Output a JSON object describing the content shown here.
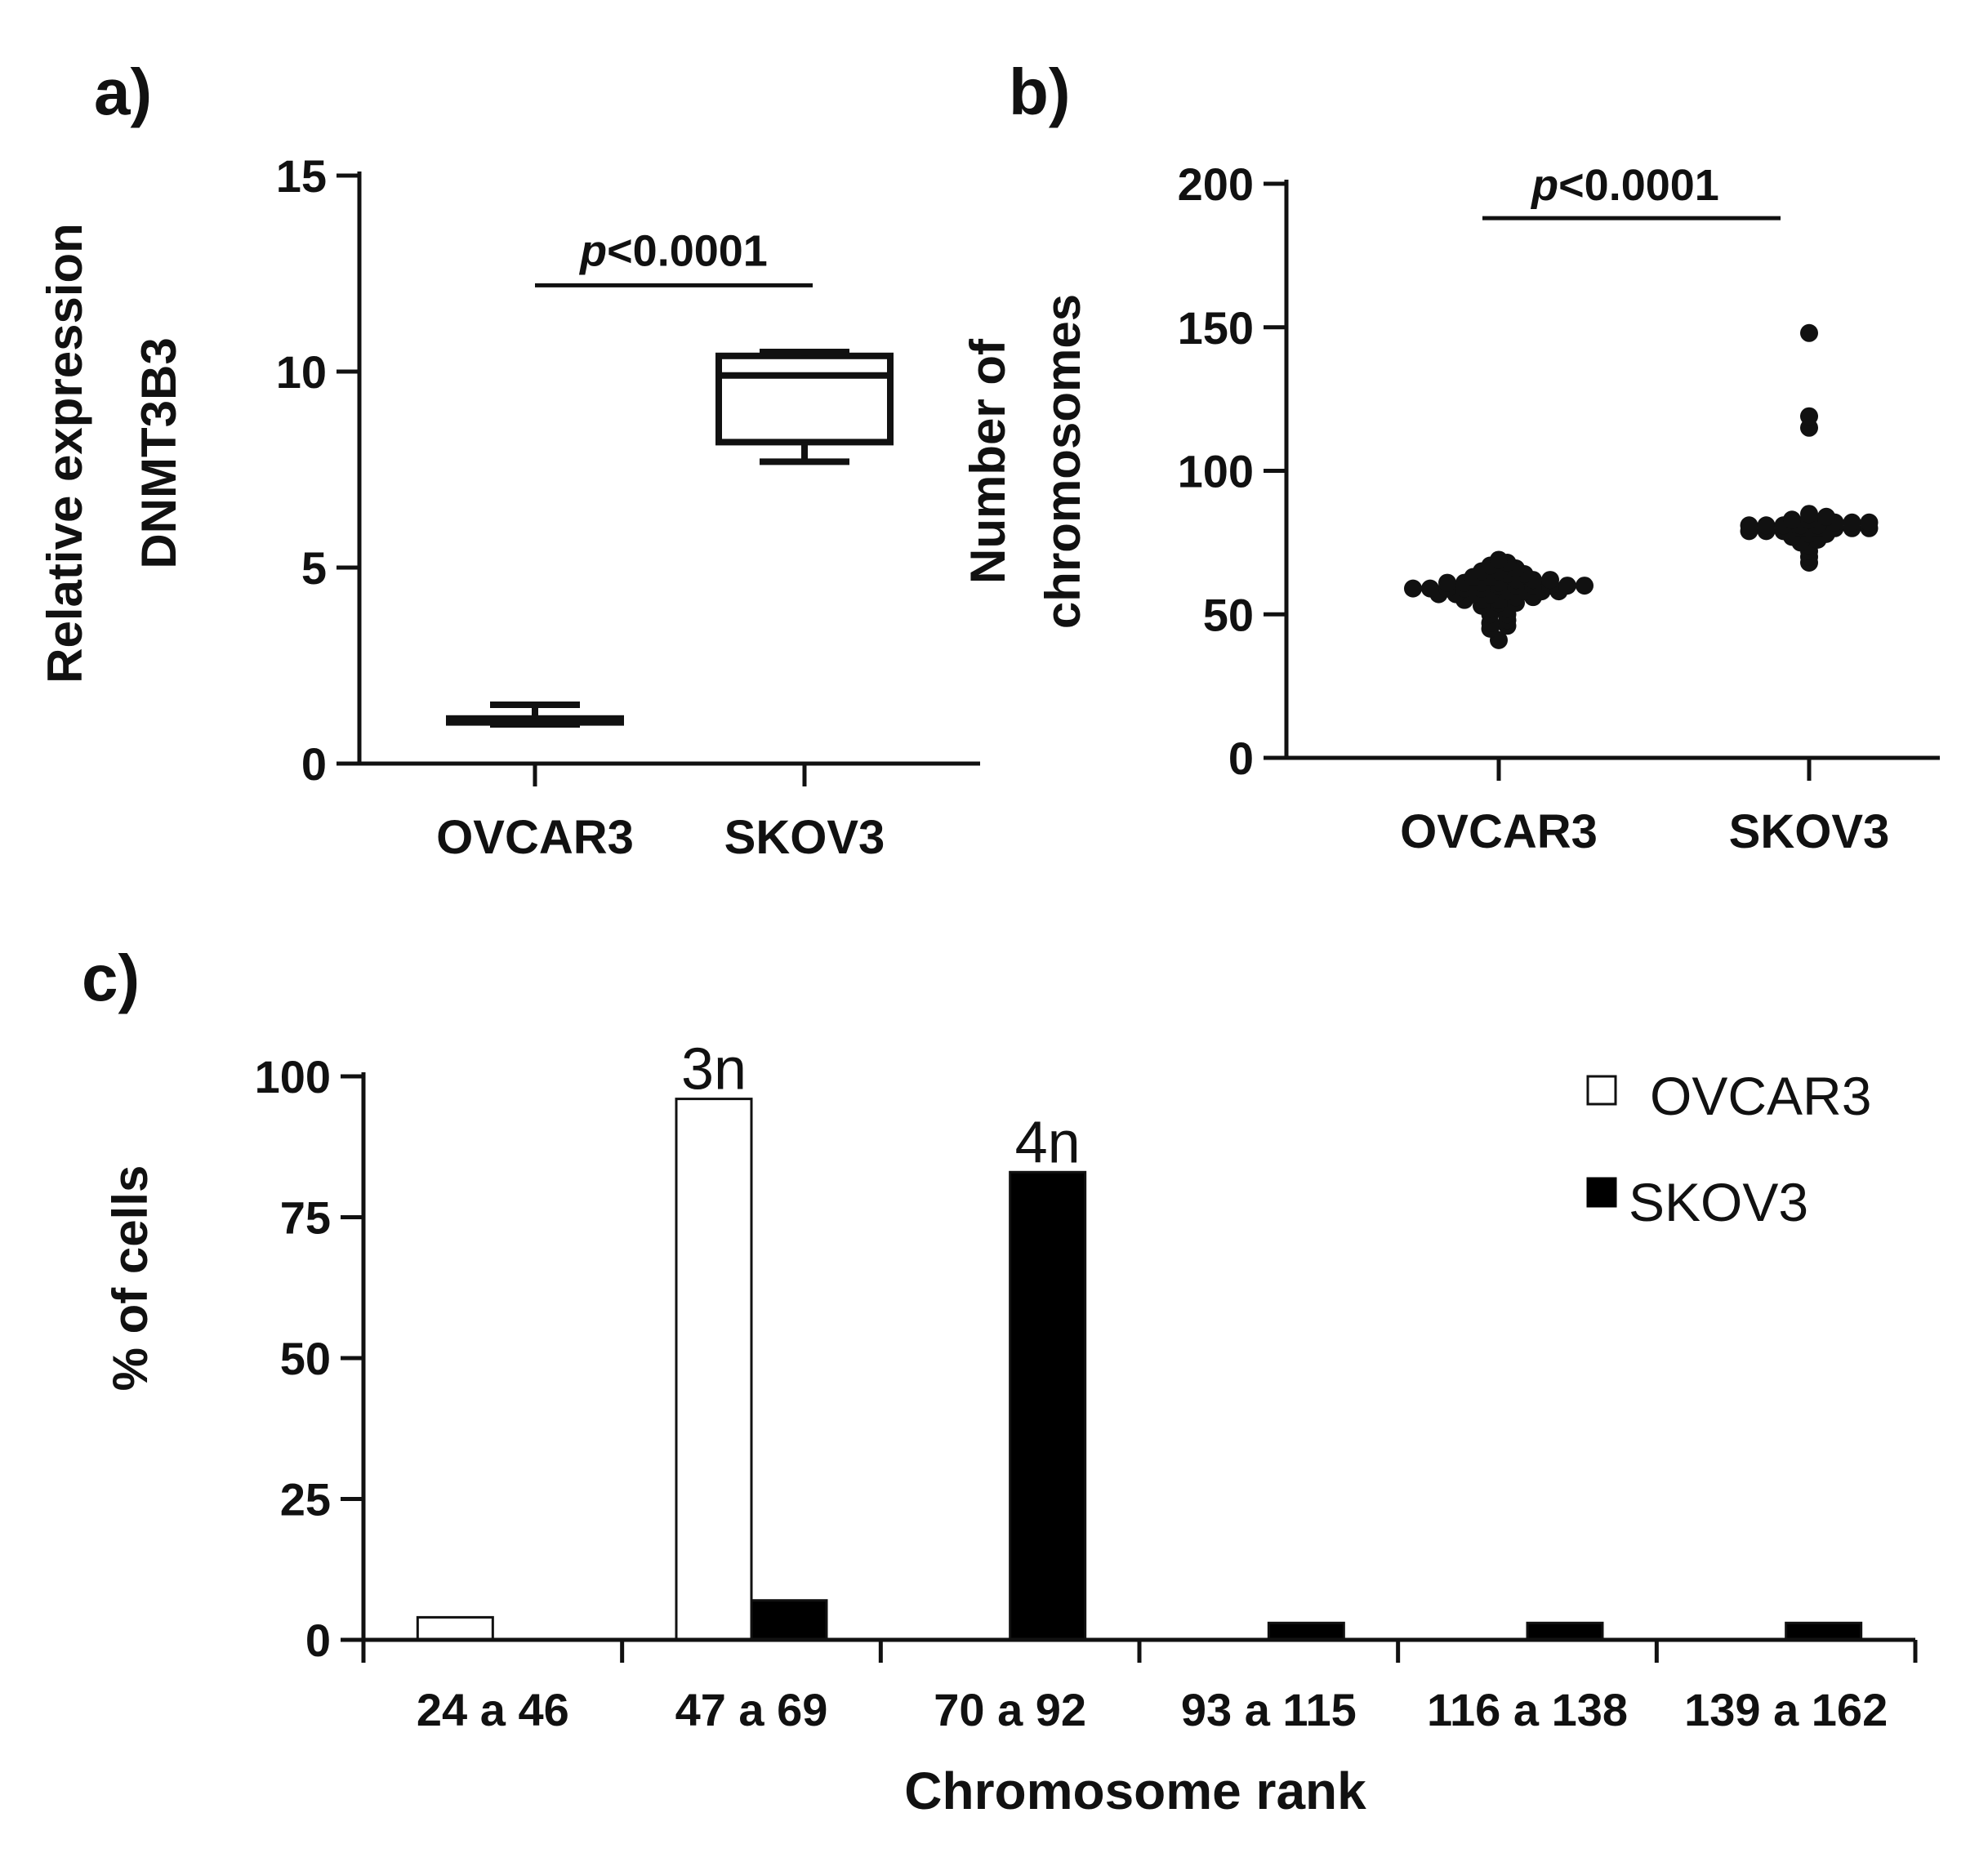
{
  "chart_data": [
    {
      "panel": "a)",
      "type": "box",
      "ylabel_line1": "Relative expression",
      "ylabel_line2": "DNMT3B3",
      "ylim": [
        0,
        15
      ],
      "yticks": [
        "0",
        "5",
        "10",
        "15"
      ],
      "categories": [
        "OVCAR3",
        "SKOV3"
      ],
      "boxes": [
        {
          "name": "OVCAR3",
          "min": 1.0,
          "q1": 1.05,
          "median": 1.1,
          "q3": 1.15,
          "max": 1.5
        },
        {
          "name": "SKOV3",
          "min": 7.7,
          "q1": 8.2,
          "median": 9.9,
          "q3": 10.4,
          "max": 10.5
        }
      ],
      "annotation": {
        "italic": "p",
        "text": "<0.0001",
        "y": 12.2
      }
    },
    {
      "panel": "b)",
      "type": "scatter",
      "ylabel_line1": "Number of",
      "ylabel_line2": "chromosomes",
      "ylim": [
        0,
        200
      ],
      "yticks": [
        "0",
        "50",
        "100",
        "150",
        "200"
      ],
      "categories": [
        "OVCAR3",
        "SKOV3"
      ],
      "series": [
        {
          "name": "OVCAR3",
          "values": [
            41,
            45,
            46,
            47,
            48,
            50,
            50,
            52,
            52,
            53,
            54,
            54,
            55,
            55,
            55,
            56,
            56,
            57,
            57,
            57,
            57,
            58,
            58,
            58,
            58,
            59,
            59,
            59,
            59,
            59,
            60,
            60,
            60,
            60,
            60,
            60,
            61,
            61,
            61,
            61,
            62,
            62,
            62,
            63,
            63,
            64,
            64,
            65,
            65,
            66,
            67,
            68,
            69
          ]
        },
        {
          "name": "SKOV3",
          "values": [
            68,
            70,
            72,
            74,
            75,
            76,
            77,
            78,
            78,
            79,
            79,
            79,
            80,
            80,
            80,
            80,
            80,
            81,
            81,
            81,
            81,
            81,
            82,
            82,
            82,
            83,
            83,
            84,
            85,
            115,
            119,
            148
          ]
        }
      ],
      "annotation": {
        "italic": "p",
        "text": "<0.0001",
        "y": 188
      }
    },
    {
      "panel": "c)",
      "type": "bar",
      "xlabel": "Chromosome rank",
      "ylabel": "% of cells",
      "ylim": [
        0,
        100
      ],
      "yticks": [
        "0",
        "25",
        "50",
        "75",
        "100"
      ],
      "categories": [
        "24 a 46",
        "47 a 69",
        "70 a 92",
        "93 a 115",
        "116 a 138",
        "139 a 162"
      ],
      "series": [
        {
          "name": "OVCAR3",
          "color": "#ffffff",
          "values": [
            4,
            96,
            0,
            0,
            0,
            0
          ]
        },
        {
          "name": "SKOV3",
          "color": "#000000",
          "values": [
            0,
            7,
            83,
            3,
            3,
            3
          ]
        }
      ],
      "bar_labels": [
        {
          "text": "3n",
          "category": 1,
          "series": 0
        },
        {
          "text": "4n",
          "category": 2,
          "series": 1
        }
      ],
      "legend_position": "top-right"
    }
  ]
}
